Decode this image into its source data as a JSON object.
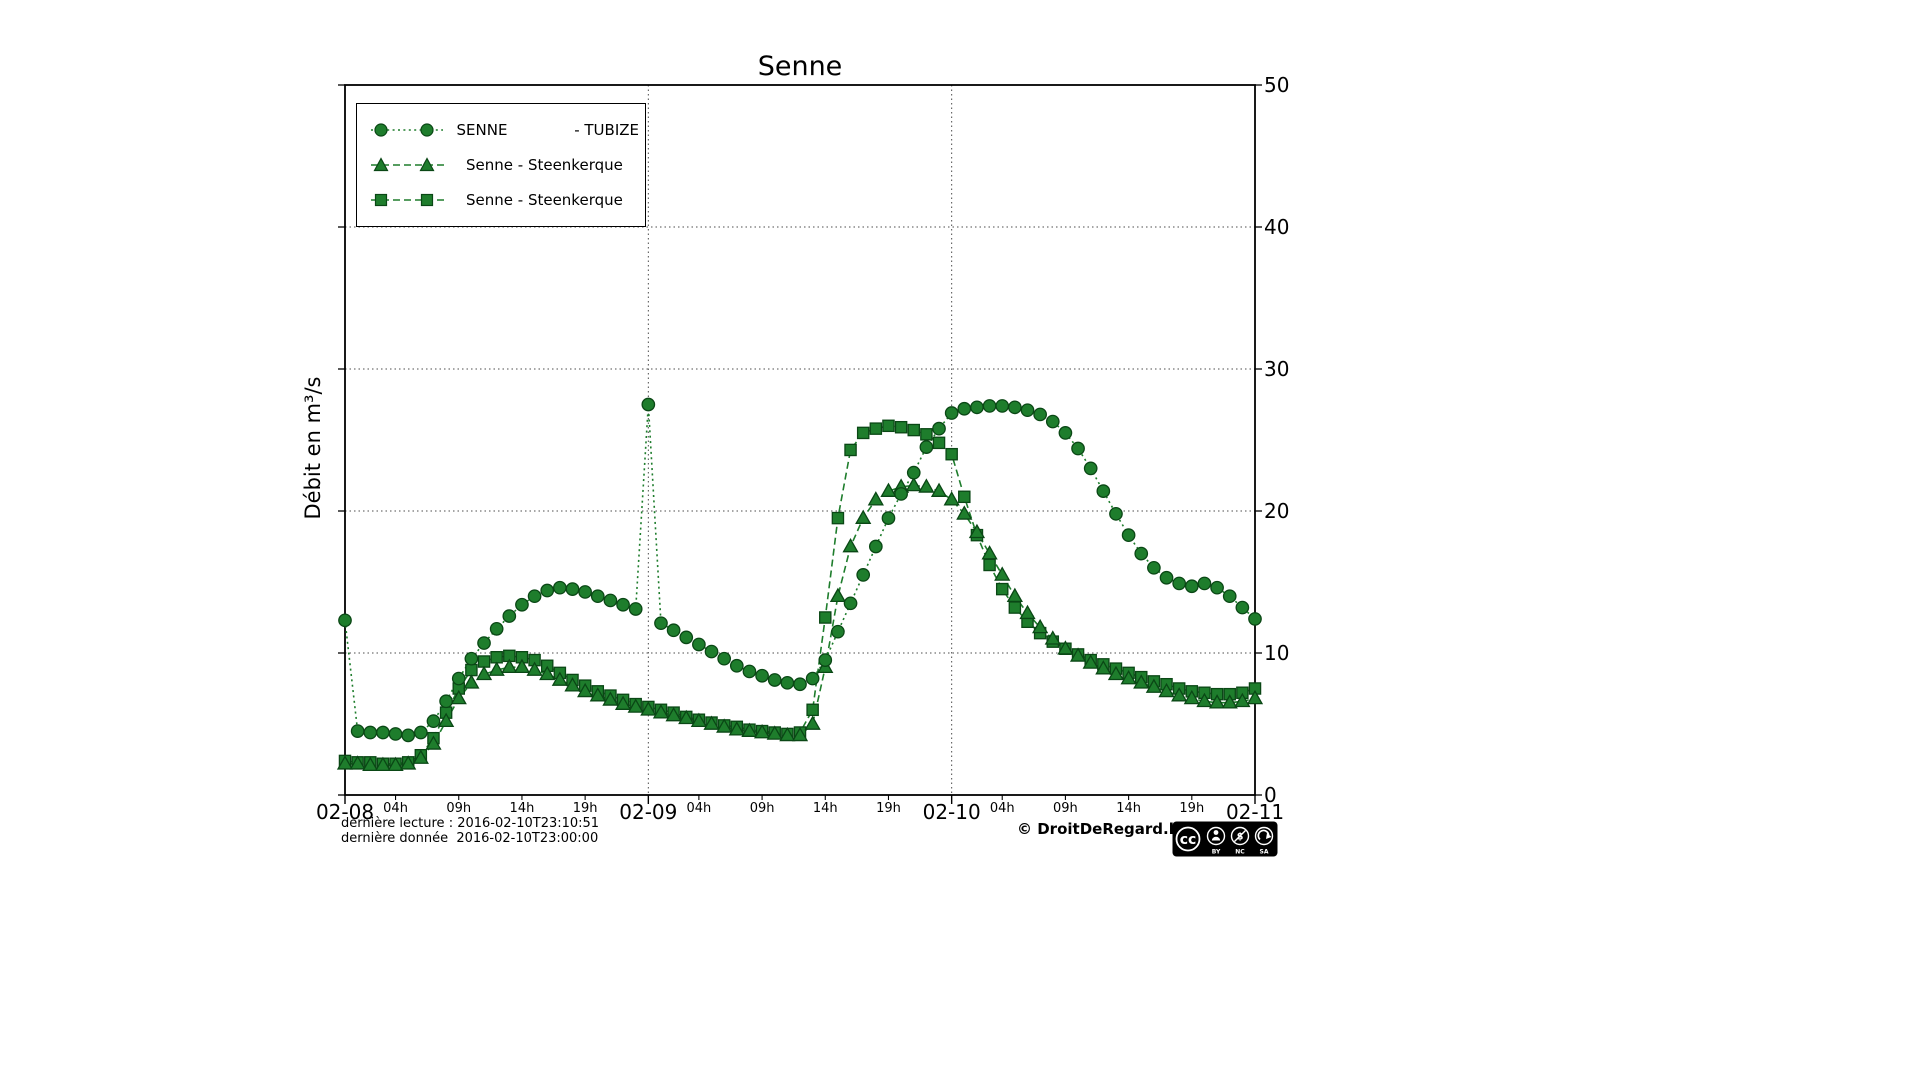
{
  "chart_data": {
    "type": "line",
    "title": "Senne",
    "ylabel": "Débit en m³/s",
    "ylim": [
      0,
      50
    ],
    "x_unit": "hours from 2016-02-08 00:00",
    "x_range_hours": [
      0,
      72
    ],
    "y_ticks": [
      0,
      10,
      20,
      30,
      40,
      50
    ],
    "x_major_ticks": {
      "hours": [
        0,
        24,
        48,
        72
      ],
      "labels": [
        "02-08",
        "02-09",
        "02-10",
        "02-11"
      ]
    },
    "x_minor_ticks": {
      "days": [
        0,
        1,
        2
      ],
      "hour_offsets": [
        4,
        9,
        14,
        19
      ],
      "labels": [
        "04h",
        "09h",
        "14h",
        "19h"
      ]
    },
    "grid": {
      "horizontal_at": [
        10,
        20,
        30,
        40
      ],
      "vertical_at_hours": [
        24,
        48
      ],
      "style": "dotted"
    },
    "color": "#1e7d2c",
    "marker_edge_color": "#0a4715",
    "legend": {
      "position": "upper-left",
      "entries": [
        {
          "label": "SENNE              - TUBIZE",
          "marker": "circle",
          "linestyle": "dotted"
        },
        {
          "label": "Senne - Steenkerque",
          "marker": "triangle",
          "linestyle": "dashed"
        },
        {
          "label": "Senne - Steenkerque",
          "marker": "square",
          "linestyle": "dashed"
        }
      ]
    },
    "series": [
      {
        "name": "SENNE - TUBIZE",
        "marker": "circle",
        "linestyle": "dotted",
        "values_hourly": [
          12.3,
          4.5,
          4.4,
          4.4,
          4.3,
          4.2,
          4.4,
          5.2,
          6.6,
          8.2,
          9.6,
          10.7,
          11.7,
          12.6,
          13.4,
          14.0,
          14.4,
          14.6,
          14.5,
          14.3,
          14.0,
          13.7,
          13.4,
          13.1,
          27.5,
          12.1,
          11.6,
          11.1,
          10.6,
          10.1,
          9.6,
          9.1,
          8.7,
          8.4,
          8.1,
          7.9,
          7.8,
          8.2,
          9.5,
          11.5,
          13.5,
          15.5,
          17.5,
          19.5,
          21.2,
          22.7,
          24.5,
          25.8,
          26.9,
          27.2,
          27.3,
          27.4,
          27.4,
          27.3,
          27.1,
          26.8,
          26.3,
          25.5,
          24.4,
          23.0,
          21.4,
          19.8,
          18.3,
          17.0,
          16.0,
          15.3,
          14.9,
          14.7,
          14.9,
          14.6,
          14.0,
          13.2,
          12.4
        ]
      },
      {
        "name": "Senne - Steenkerque",
        "marker": "triangle",
        "linestyle": "dashed",
        "values_hourly": [
          2.2,
          2.2,
          2.1,
          2.1,
          2.1,
          2.2,
          2.6,
          3.6,
          5.2,
          6.8,
          7.9,
          8.5,
          8.8,
          9.0,
          9.0,
          8.8,
          8.5,
          8.1,
          7.7,
          7.3,
          7.0,
          6.7,
          6.4,
          6.2,
          6.0,
          5.8,
          5.6,
          5.4,
          5.2,
          5.0,
          4.8,
          4.6,
          4.5,
          4.4,
          4.3,
          4.2,
          4.2,
          5.0,
          9.0,
          14.0,
          17.5,
          19.5,
          20.8,
          21.4,
          21.7,
          21.8,
          21.7,
          21.4,
          20.8,
          19.8,
          18.5,
          17.0,
          15.5,
          14.0,
          12.8,
          11.8,
          11.0,
          10.3,
          9.8,
          9.3,
          8.9,
          8.5,
          8.2,
          7.9,
          7.6,
          7.3,
          7.0,
          6.8,
          6.6,
          6.5,
          6.5,
          6.6,
          6.8
        ]
      },
      {
        "name": "Senne - Steenkerque",
        "marker": "square",
        "linestyle": "dashed",
        "values_hourly": [
          2.4,
          2.3,
          2.3,
          2.2,
          2.2,
          2.3,
          2.8,
          4.0,
          5.8,
          7.5,
          8.8,
          9.4,
          9.7,
          9.8,
          9.7,
          9.5,
          9.1,
          8.6,
          8.1,
          7.7,
          7.3,
          7.0,
          6.7,
          6.4,
          6.2,
          6.0,
          5.8,
          5.5,
          5.3,
          5.1,
          4.9,
          4.8,
          4.6,
          4.5,
          4.4,
          4.3,
          4.4,
          6.0,
          12.5,
          19.5,
          24.3,
          25.5,
          25.8,
          26.0,
          25.9,
          25.7,
          25.4,
          24.8,
          24.0,
          21.0,
          18.3,
          16.2,
          14.5,
          13.2,
          12.2,
          11.4,
          10.8,
          10.3,
          9.9,
          9.5,
          9.2,
          8.9,
          8.6,
          8.3,
          8.0,
          7.8,
          7.5,
          7.3,
          7.2,
          7.1,
          7.1,
          7.2,
          7.5
        ]
      }
    ]
  },
  "footer": {
    "last_reading": "dernière lecture : 2016-02-10T23:10:51",
    "last_data": "dernière donnée  2016-02-10T23:00:00",
    "copyright": "© DroitDeRegard.be",
    "license": "CC BY-NC-SA"
  }
}
